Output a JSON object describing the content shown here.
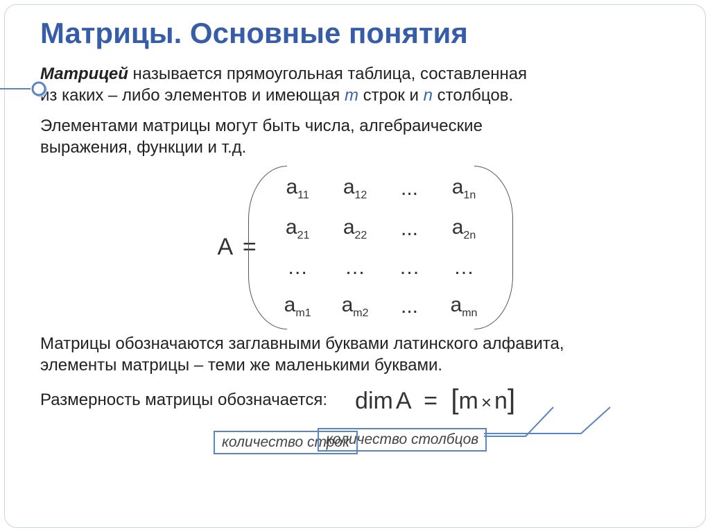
{
  "title": "Матрицы. Основные понятия",
  "definition": {
    "bold_intro": "Матрицей",
    "text_after_bold": " называется прямоугольная таблица, составленная",
    "line2_pre": "из каких – либо элементов и имеющая ",
    "m_letter": "m",
    "line2_mid": " строк и ",
    "n_letter": "n",
    "line2_end": " столбцов."
  },
  "elements_text": {
    "line1": "Элементами матрицы могут быть числа, алгебраические",
    "line2": "выражения, функции и т.д."
  },
  "matrix": {
    "lhs": "A",
    "eq": "=",
    "rows": [
      [
        [
          "a",
          "11"
        ],
        [
          "a",
          "12"
        ],
        [
          "...",
          ""
        ],
        [
          "a",
          "1n"
        ]
      ],
      [
        [
          "a",
          "21"
        ],
        [
          "a",
          "22"
        ],
        [
          "...",
          ""
        ],
        [
          "a",
          "2n"
        ]
      ],
      [
        [
          "…",
          ""
        ],
        [
          "…",
          ""
        ],
        [
          "…",
          ""
        ],
        [
          "…",
          ""
        ]
      ],
      [
        [
          "a",
          "m1"
        ],
        [
          "a",
          "m2"
        ],
        [
          "...",
          ""
        ],
        [
          "a",
          "mn"
        ]
      ]
    ]
  },
  "notation_text": {
    "line1": "Матрицы обозначаются заглавными буквами латинского алфавита,",
    "line2": "элементы матрицы – теми же маленькими буквами."
  },
  "dimension": {
    "label": "Размерность матрицы обозначается:",
    "dim_word": "dim",
    "A": "A",
    "eq": "=",
    "lb": "[",
    "m": "m",
    "times": "×",
    "n": "n",
    "rb": "]"
  },
  "callouts": {
    "rows": "количество строк",
    "cols": "количество столбцов"
  },
  "colors": {
    "title": "#385da8",
    "accent": "#5b84c4",
    "text": "#222222",
    "blue_italic": "#3a64a6"
  }
}
